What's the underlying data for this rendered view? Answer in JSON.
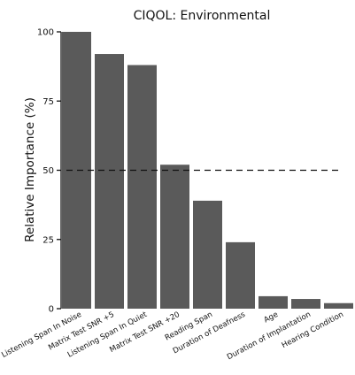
{
  "chart_data": {
    "type": "bar",
    "title": "CIQOL: Environmental",
    "xlabel": "",
    "ylabel": "Relative Importance (%)",
    "ylim": [
      0,
      100
    ],
    "yticks": [
      0,
      25,
      50,
      75,
      100
    ],
    "grid": false,
    "categories": [
      "Listening Span In Noise",
      "Matrix Test SNR +5",
      "Listening Span In Quiet",
      "Matrix Test SNR +20",
      "Reading Span",
      "Duration of Deafness",
      "Age",
      "Duration of Implantation",
      "Hearing Condition"
    ],
    "values": [
      100,
      92,
      88,
      52,
      39,
      24,
      4.5,
      3.5,
      2
    ],
    "reference_line": {
      "value": 50,
      "style": "dashed"
    },
    "bar_color": "#5a5a5a",
    "axis_color": "#111111"
  }
}
